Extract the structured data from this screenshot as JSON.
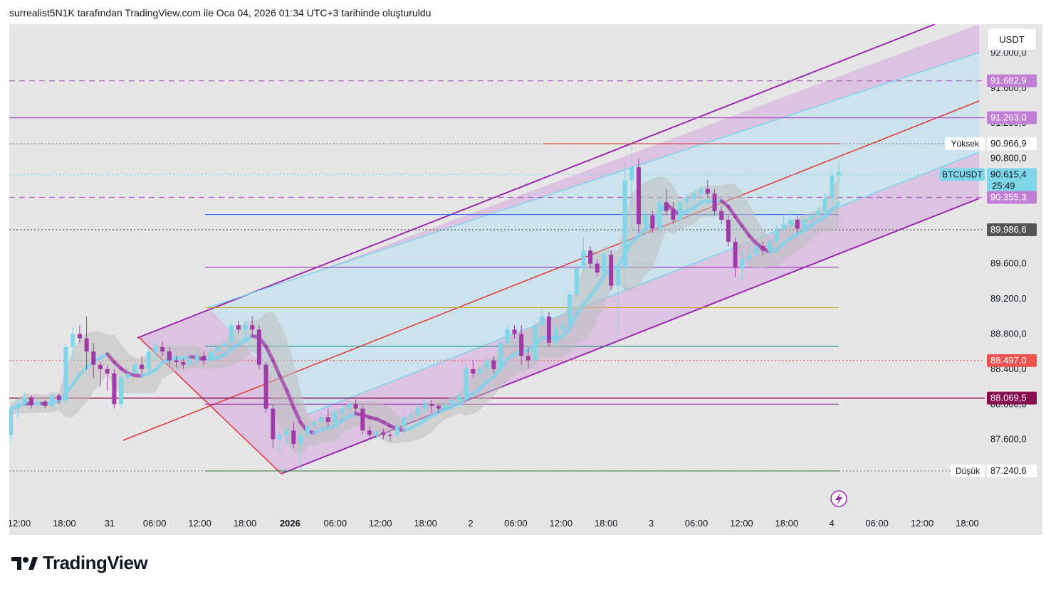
{
  "caption": "surrealist5N1K tarafından TradingView.com ile Oca 04, 2026 01:34 UTC+3 tarihinde oluşturuldu",
  "currency": "USDT",
  "brand": "TradingView",
  "symbol": "BTCUSDT",
  "countdown": "25:49",
  "colors": {
    "bull": "#7fd6e8",
    "bear": "#a03aa8",
    "channel_border": "#9c27b0",
    "channel_fill": "#d4a6dc",
    "inner_fill": "#c9e8ee",
    "inner_line": "#7fd3ee",
    "red_line": "#e53935",
    "background": "#e6e6e6"
  },
  "chart_data": {
    "type": "candlestick",
    "ylim": [
      87000,
      92400
    ],
    "y_ticks": [
      92000,
      91600,
      91200,
      90800,
      89600,
      89200,
      88800,
      88400,
      88000,
      87600
    ],
    "y_tick_labels": [
      "92.000,0",
      "91.600,0",
      "91.200,0",
      "90.800,0",
      "89.600,0",
      "89.200,0",
      "88.800,0",
      "88.400,0",
      "88.000,0",
      "87.600,0"
    ],
    "x_labels": [
      {
        "label": "12:00",
        "bold": false
      },
      {
        "label": "18:00",
        "bold": false
      },
      {
        "label": "31",
        "bold": false
      },
      {
        "label": "06:00",
        "bold": false
      },
      {
        "label": "12:00",
        "bold": false
      },
      {
        "label": "18:00",
        "bold": false
      },
      {
        "label": "2026",
        "bold": true
      },
      {
        "label": "06:00",
        "bold": false
      },
      {
        "label": "12:00",
        "bold": false
      },
      {
        "label": "18:00",
        "bold": false
      },
      {
        "label": "2",
        "bold": false
      },
      {
        "label": "06:00",
        "bold": false
      },
      {
        "label": "12:00",
        "bold": false
      },
      {
        "label": "18:00",
        "bold": false
      },
      {
        "label": "3",
        "bold": false
      },
      {
        "label": "06:00",
        "bold": false
      },
      {
        "label": "12:00",
        "bold": false
      },
      {
        "label": "18:00",
        "bold": false
      },
      {
        "label": "4",
        "bold": false
      },
      {
        "label": "06:00",
        "bold": false
      },
      {
        "label": "12:00",
        "bold": false
      },
      {
        "label": "18:00",
        "bold": false
      }
    ],
    "price_markers": [
      {
        "value": 91682.9,
        "label": "91.682,9",
        "bg": "#c27fd6",
        "fg": "#ffffff",
        "line": "dashed",
        "line_color": "#b25cc6"
      },
      {
        "value": 91263.0,
        "label": "91.263,0",
        "bg": "#c27fd6",
        "fg": "#ffffff",
        "line": "solid",
        "line_color": "#b25cc6"
      },
      {
        "value": 90966.9,
        "label": "90.966,9",
        "bg": "#ffffff",
        "fg": "#131722",
        "line": "dotted",
        "line_color": "#888888",
        "tag": "Yüksek"
      },
      {
        "value": 90615.4,
        "label": "90.615,4",
        "bg": "#7fd6e8",
        "fg": "#131722",
        "line": "dotted",
        "line_color": "#7fd3ee",
        "tag": "BTCUSDT"
      },
      {
        "value": 90355.3,
        "label": "90.355,3",
        "bg": "#c27fd6",
        "fg": "#ffffff",
        "line": "dashed",
        "line_color": "#b25cc6"
      },
      {
        "value": 89986.6,
        "label": "89.986,6",
        "bg": "#555555",
        "fg": "#ffffff",
        "line": "dotted",
        "line_color": "#555555"
      },
      {
        "value": 88497.0,
        "label": "88.497,0",
        "bg": "#ef5350",
        "fg": "#ffffff",
        "line": "dotted",
        "line_color": "#ef5350"
      },
      {
        "value": 88069.5,
        "label": "88.069,5",
        "bg": "#880e4f",
        "fg": "#ffffff",
        "line": "solid",
        "line_color": "#880e4f"
      },
      {
        "value": 87240.6,
        "label": "87.240,6",
        "bg": "#ffffff",
        "fg": "#131722",
        "line": "dotted",
        "line_color": "#888888",
        "tag": "Düşük"
      }
    ],
    "candles": [
      [
        87650,
        87980,
        87560,
        87950
      ],
      [
        87950,
        88050,
        87850,
        88000
      ],
      [
        88000,
        88150,
        87980,
        88080
      ],
      [
        88080,
        88100,
        87950,
        87990
      ],
      [
        87990,
        88050,
        87900,
        88030
      ],
      [
        88030,
        88050,
        87950,
        87980
      ],
      [
        87980,
        88150,
        87950,
        88100
      ],
      [
        88100,
        88120,
        88000,
        88050
      ],
      [
        88050,
        88700,
        88000,
        88650
      ],
      [
        88650,
        88880,
        88500,
        88800
      ],
      [
        88800,
        88900,
        88700,
        88750
      ],
      [
        88750,
        89000,
        88400,
        88600
      ],
      [
        88600,
        88700,
        88300,
        88450
      ],
      [
        88450,
        88480,
        88200,
        88400
      ],
      [
        88400,
        88450,
        88150,
        88350
      ],
      [
        88350,
        88400,
        87950,
        88000
      ],
      [
        88000,
        88350,
        87950,
        88300
      ],
      [
        88300,
        88400,
        88200,
        88350
      ],
      [
        88350,
        88500,
        88300,
        88450
      ],
      [
        88450,
        88550,
        88350,
        88400
      ],
      [
        88400,
        88650,
        88350,
        88600
      ],
      [
        88600,
        88700,
        88500,
        88650
      ],
      [
        88650,
        88720,
        88550,
        88600
      ],
      [
        88600,
        88650,
        88450,
        88500
      ],
      [
        88500,
        88550,
        88420,
        88480
      ],
      [
        88480,
        88520,
        88400,
        88450
      ],
      [
        88450,
        88550,
        88420,
        88500
      ],
      [
        88500,
        88580,
        88450,
        88550
      ],
      [
        88550,
        88600,
        88450,
        88500
      ],
      [
        88500,
        88650,
        88480,
        88600
      ],
      [
        88600,
        88700,
        88550,
        88650
      ],
      [
        88650,
        88750,
        88600,
        88700
      ],
      [
        88700,
        88950,
        88650,
        88900
      ],
      [
        88900,
        88950,
        88800,
        88850
      ],
      [
        88850,
        88950,
        88700,
        88900
      ],
      [
        88900,
        89000,
        88800,
        88850
      ],
      [
        88850,
        88900,
        88400,
        88450
      ],
      [
        88450,
        88480,
        87900,
        87950
      ],
      [
        87950,
        88000,
        87500,
        87600
      ],
      [
        87600,
        87700,
        87450,
        87650
      ],
      [
        87650,
        87750,
        87550,
        87700
      ],
      [
        87700,
        87800,
        87500,
        87550
      ],
      [
        87550,
        87700,
        87250,
        87650
      ],
      [
        87650,
        87800,
        87600,
        87750
      ],
      [
        87750,
        87850,
        87650,
        87800
      ],
      [
        87800,
        87900,
        87750,
        87850
      ],
      [
        87850,
        87950,
        87750,
        87800
      ],
      [
        87800,
        87950,
        87750,
        87900
      ],
      [
        87900,
        88000,
        87850,
        87950
      ],
      [
        87950,
        88050,
        87900,
        88000
      ],
      [
        88000,
        88050,
        87900,
        87950
      ],
      [
        87950,
        87980,
        87650,
        87700
      ],
      [
        87700,
        87750,
        87600,
        87650
      ],
      [
        87650,
        87700,
        87600,
        87680
      ],
      [
        87680,
        87720,
        87600,
        87650
      ],
      [
        87650,
        87680,
        87580,
        87640
      ],
      [
        87640,
        87800,
        87620,
        87750
      ],
      [
        87750,
        87900,
        87720,
        87850
      ],
      [
        87850,
        87950,
        87800,
        87880
      ],
      [
        87880,
        88000,
        87850,
        87950
      ],
      [
        87950,
        88050,
        87900,
        88000
      ],
      [
        88000,
        88050,
        87900,
        87980
      ],
      [
        87980,
        88000,
        87900,
        87950
      ],
      [
        87950,
        88050,
        87900,
        88000
      ],
      [
        88000,
        88100,
        87950,
        88050
      ],
      [
        88050,
        88150,
        88000,
        88100
      ],
      [
        88100,
        88450,
        88050,
        88400
      ],
      [
        88400,
        88500,
        88300,
        88350
      ],
      [
        88350,
        88450,
        88250,
        88400
      ],
      [
        88400,
        88550,
        88350,
        88500
      ],
      [
        88500,
        88550,
        88350,
        88400
      ],
      [
        88400,
        88750,
        88350,
        88700
      ],
      [
        88700,
        88900,
        88650,
        88850
      ],
      [
        88850,
        88900,
        88750,
        88800
      ],
      [
        88800,
        88900,
        88450,
        88550
      ],
      [
        88550,
        88650,
        88400,
        88500
      ],
      [
        88500,
        88950,
        88450,
        88900
      ],
      [
        88900,
        89100,
        88850,
        89000
      ],
      [
        89000,
        89050,
        88650,
        88700
      ],
      [
        88700,
        88900,
        88650,
        88850
      ],
      [
        88850,
        88950,
        88800,
        88900
      ],
      [
        88900,
        89300,
        88850,
        89250
      ],
      [
        89250,
        89600,
        89200,
        89550
      ],
      [
        89550,
        89900,
        89500,
        89750
      ],
      [
        89750,
        89800,
        89550,
        89600
      ],
      [
        89600,
        89650,
        89450,
        89500
      ],
      [
        89500,
        89750,
        89450,
        89700
      ],
      [
        89700,
        89750,
        89300,
        89350
      ],
      [
        89350,
        89600,
        88800,
        89550
      ],
      [
        89550,
        90800,
        89300,
        90550
      ],
      [
        90550,
        90950,
        90000,
        90700
      ],
      [
        90700,
        90800,
        89950,
        90050
      ],
      [
        90050,
        90200,
        89900,
        90150
      ],
      [
        90150,
        90200,
        89950,
        90000
      ],
      [
        90000,
        90350,
        89950,
        90300
      ],
      [
        90300,
        90450,
        90150,
        90200
      ],
      [
        90200,
        90300,
        90050,
        90100
      ],
      [
        90100,
        90350,
        90050,
        90300
      ],
      [
        90300,
        90400,
        90200,
        90350
      ],
      [
        90350,
        90450,
        90300,
        90400
      ],
      [
        90400,
        90500,
        90350,
        90450
      ],
      [
        90450,
        90550,
        90350,
        90400
      ],
      [
        90400,
        90450,
        90150,
        90200
      ],
      [
        90200,
        90250,
        90050,
        90100
      ],
      [
        90100,
        90150,
        89800,
        89850
      ],
      [
        89850,
        89900,
        89450,
        89550
      ],
      [
        89550,
        89750,
        89400,
        89650
      ],
      [
        89650,
        89800,
        89600,
        89700
      ],
      [
        89700,
        89850,
        89650,
        89800
      ],
      [
        89800,
        89850,
        89700,
        89750
      ],
      [
        89750,
        89900,
        89700,
        89850
      ],
      [
        89850,
        90050,
        89800,
        90000
      ],
      [
        90000,
        90150,
        89950,
        90050
      ],
      [
        90050,
        90200,
        90000,
        90100
      ],
      [
        90100,
        90150,
        89950,
        90000
      ],
      [
        90000,
        90150,
        89950,
        90100
      ],
      [
        90100,
        90200,
        90050,
        90150
      ],
      [
        90150,
        90250,
        90100,
        90200
      ],
      [
        90200,
        90400,
        90150,
        90350
      ],
      [
        90350,
        90700,
        90300,
        90600
      ],
      [
        90600,
        90750,
        90500,
        90650
      ]
    ]
  }
}
